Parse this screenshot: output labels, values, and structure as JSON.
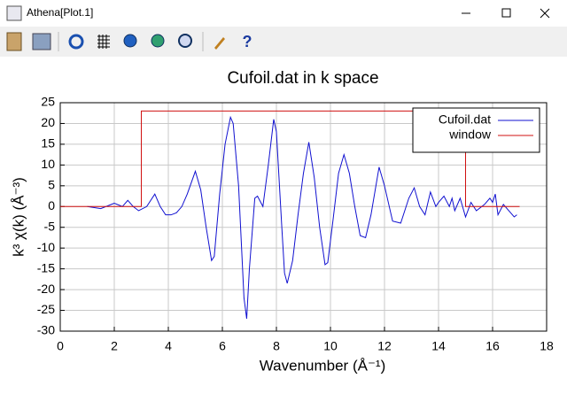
{
  "window": {
    "title": "Athena[Plot.1]"
  },
  "chart_data": {
    "type": "line",
    "title": "Cufoil.dat in k space",
    "xlabel": "Wavenumber    (Å⁻¹)",
    "ylabel": "k³ χ(k)    (Å⁻³)",
    "xlim": [
      0,
      18
    ],
    "ylim": [
      -30,
      25
    ],
    "xticks": [
      0,
      2,
      4,
      6,
      8,
      10,
      12,
      14,
      16,
      18
    ],
    "yticks": [
      -30,
      -25,
      -20,
      -15,
      -10,
      -5,
      0,
      5,
      10,
      15,
      20,
      25
    ],
    "grid": true,
    "legend": "top-right",
    "series": [
      {
        "name": "Cufoil.dat",
        "color": "#1010d0",
        "x": [
          1,
          1.5,
          2,
          2.3,
          2.5,
          2.7,
          2.9,
          3.2,
          3.5,
          3.7,
          3.9,
          4.1,
          4.3,
          4.5,
          4.7,
          5.0,
          5.2,
          5.4,
          5.6,
          5.7,
          5.9,
          6.1,
          6.3,
          6.4,
          6.6,
          6.8,
          6.9,
          7.0,
          7.2,
          7.3,
          7.5,
          7.7,
          7.9,
          8.0,
          8.2,
          8.3,
          8.4,
          8.6,
          8.8,
          9.0,
          9.2,
          9.4,
          9.6,
          9.8,
          9.9,
          10.1,
          10.3,
          10.5,
          10.7,
          10.9,
          11.1,
          11.3,
          11.5,
          11.8,
          12.0,
          12.3,
          12.6,
          12.9,
          13.1,
          13.3,
          13.5,
          13.7,
          13.9,
          14.0,
          14.2,
          14.4,
          14.5,
          14.6,
          14.8,
          15.0,
          15.2,
          15.4,
          15.7,
          15.9,
          16.0,
          16.1,
          16.2,
          16.4,
          16.6,
          16.8,
          16.9
        ],
        "values": [
          0,
          -0.5,
          0.8,
          0,
          1.5,
          0,
          -1,
          0,
          3,
          0,
          -2,
          -2,
          -1.5,
          0,
          3,
          8.5,
          4,
          -5,
          -13,
          -12,
          3,
          15,
          21.5,
          20,
          5,
          -22,
          -27,
          -15,
          2,
          2.5,
          0,
          10,
          21,
          18,
          -5,
          -16,
          -18.5,
          -13,
          -2,
          8,
          15.5,
          7,
          -5,
          -14,
          -13.5,
          -3,
          8,
          12.5,
          8,
          0,
          -7,
          -7.5,
          -2,
          9.5,
          5,
          -3.5,
          -4,
          2,
          4.5,
          0,
          -2,
          3.5,
          0,
          1,
          2.5,
          0,
          2,
          -1,
          2,
          -2.5,
          1,
          -1,
          0.5,
          2,
          1,
          3,
          -2,
          0.5,
          -1,
          -2.5,
          -2
        ]
      },
      {
        "name": "window",
        "color": "#d01010",
        "x": [
          0,
          3,
          3,
          15,
          15,
          17
        ],
        "values": [
          0,
          0,
          23,
          23,
          0,
          0
        ]
      }
    ]
  }
}
